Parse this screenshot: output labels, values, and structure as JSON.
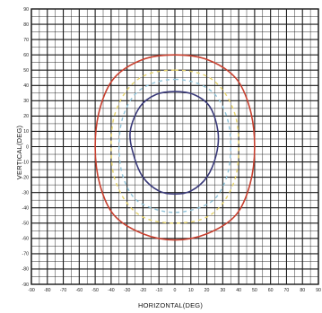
{
  "chart_data": {
    "type": "line",
    "title": "",
    "xlabel": "HORIZONTAL(DEG)",
    "ylabel": "VERTICAL(DEG)",
    "xlim": [
      -90,
      90
    ],
    "ylim": [
      -90,
      90
    ],
    "grid": true,
    "x_tick_labels": [
      "-90",
      "-80",
      "-70",
      "-60",
      "-50",
      "-40",
      "-30",
      "-20",
      "-10",
      "0",
      "10",
      "20",
      "30",
      "40",
      "50",
      "60",
      "70",
      "80",
      "90"
    ],
    "y_tick_labels": [
      "90",
      "80",
      "70",
      "60",
      "50",
      "40",
      "30",
      "20",
      "10",
      "0",
      "-10",
      "-20",
      "-30",
      "-40",
      "-50",
      "-60",
      "-70",
      "-80",
      "-90"
    ],
    "series": [
      {
        "color": "#c8402f",
        "style": "solid",
        "points": [
          [
            0,
            60
          ],
          [
            20,
            57
          ],
          [
            38,
            45
          ],
          [
            47,
            25
          ],
          [
            50,
            0
          ],
          [
            47,
            -25
          ],
          [
            38,
            -45
          ],
          [
            20,
            -57
          ],
          [
            0,
            -61
          ],
          [
            -20,
            -57
          ],
          [
            -38,
            -45
          ],
          [
            -47,
            -25
          ],
          [
            -50,
            0
          ],
          [
            -47,
            25
          ],
          [
            -38,
            45
          ],
          [
            -20,
            57
          ]
        ]
      },
      {
        "color": "#3a3a7a",
        "style": "solid",
        "points": [
          [
            0,
            36
          ],
          [
            12,
            34
          ],
          [
            22,
            26
          ],
          [
            27,
            10
          ],
          [
            26,
            -5
          ],
          [
            20,
            -20
          ],
          [
            10,
            -29
          ],
          [
            0,
            -31
          ],
          [
            -10,
            -29
          ],
          [
            -20,
            -20
          ],
          [
            -26,
            -5
          ],
          [
            -28,
            10
          ],
          [
            -22,
            26
          ],
          [
            -12,
            34
          ]
        ]
      },
      {
        "color": "#e6d36a",
        "style": "dashed",
        "points": [
          [
            0,
            50
          ],
          [
            18,
            47
          ],
          [
            30,
            37
          ],
          [
            38,
            20
          ],
          [
            40,
            0
          ],
          [
            38,
            -20
          ],
          [
            30,
            -37
          ],
          [
            18,
            -47
          ],
          [
            0,
            -50
          ],
          [
            -18,
            -47
          ],
          [
            -30,
            -37
          ],
          [
            -38,
            -20
          ],
          [
            -40,
            0
          ],
          [
            -38,
            20
          ],
          [
            -30,
            37
          ],
          [
            -18,
            47
          ]
        ]
      },
      {
        "color": "#8ec3d9",
        "style": "dashed",
        "points": [
          [
            0,
            44
          ],
          [
            15,
            41
          ],
          [
            26,
            33
          ],
          [
            33,
            18
          ],
          [
            35,
            0
          ],
          [
            33,
            -18
          ],
          [
            26,
            -33
          ],
          [
            15,
            -40
          ],
          [
            0,
            -43
          ],
          [
            -15,
            -40
          ],
          [
            -26,
            -33
          ],
          [
            -33,
            -18
          ],
          [
            -35,
            0
          ],
          [
            -33,
            18
          ],
          [
            -26,
            33
          ],
          [
            -15,
            41
          ]
        ]
      }
    ]
  }
}
